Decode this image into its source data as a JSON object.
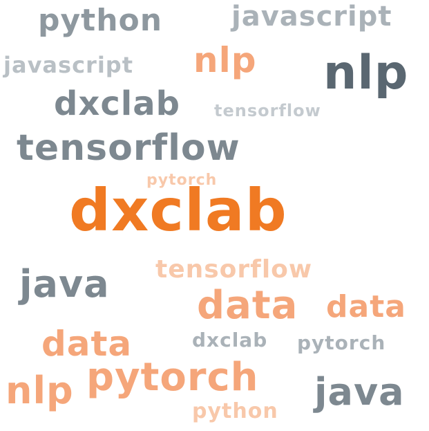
{
  "colors": {
    "dark_slate": "#5a6771",
    "slate": "#7d8890",
    "light_slate": "#b4bbc0",
    "orange": "#f07a23",
    "light_orange": "#f5a67a",
    "pale_orange": "#f8c8aa"
  },
  "words": [
    {
      "text": "python",
      "color": "#8e989f"
    },
    {
      "text": "javascript",
      "color": "#aab2b8"
    },
    {
      "text": "javascript",
      "color": "#b9c0c5"
    },
    {
      "text": "nlp",
      "color": "#f5a67a"
    },
    {
      "text": "nlp",
      "color": "#5a6771"
    },
    {
      "text": "dxclab",
      "color": "#7d8890"
    },
    {
      "text": "tensorflow",
      "color": "#c4cacf"
    },
    {
      "text": "tensorflow",
      "color": "#7d8890"
    },
    {
      "text": "pytorch",
      "color": "#f8c8aa"
    },
    {
      "text": "dxclab",
      "color": "#f07a23"
    },
    {
      "text": "tensorflow",
      "color": "#f8c8aa"
    },
    {
      "text": "java",
      "color": "#7d8890"
    },
    {
      "text": "data",
      "color": "#f5a67a"
    },
    {
      "text": "data",
      "color": "#f5a67a"
    },
    {
      "text": "data",
      "color": "#f5a67a"
    },
    {
      "text": "dxclab",
      "color": "#aab2b8"
    },
    {
      "text": "pytorch",
      "color": "#aab2b8"
    },
    {
      "text": "nlp",
      "color": "#f5a67a"
    },
    {
      "text": "pytorch",
      "color": "#f5a67a"
    },
    {
      "text": "java",
      "color": "#7d8890"
    },
    {
      "text": "python",
      "color": "#f8c8aa"
    }
  ]
}
